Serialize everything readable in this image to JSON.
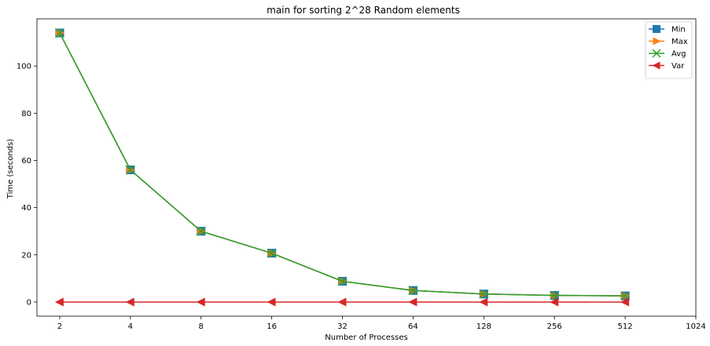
{
  "chart_data": {
    "type": "line",
    "title": "main for sorting 2^28 Random elements",
    "xlabel": "Number of Processes",
    "ylabel": "Time (seconds)",
    "x_scale": "log2",
    "x": [
      2,
      4,
      8,
      16,
      32,
      64,
      128,
      256,
      512
    ],
    "xticks": [
      "2",
      "4",
      "8",
      "16",
      "32",
      "64",
      "128",
      "256",
      "512",
      "1024"
    ],
    "yticks": [
      "0",
      "20",
      "40",
      "60",
      "80",
      "100"
    ],
    "xlim": [
      1.6,
      1024
    ],
    "ylim": [
      -6,
      120
    ],
    "grid": false,
    "legend_position": "top-right",
    "series": [
      {
        "name": "Min",
        "values": [
          114.0,
          56.0,
          30.0,
          20.7,
          8.8,
          4.9,
          3.4,
          2.8,
          2.6
        ],
        "color": "#1f77b4",
        "marker": "square"
      },
      {
        "name": "Max",
        "values": [
          114.0,
          56.0,
          30.0,
          20.7,
          8.8,
          4.9,
          3.4,
          2.8,
          2.6
        ],
        "color": "#ff7f0e",
        "marker": "triangle-right"
      },
      {
        "name": "Avg",
        "values": [
          114.0,
          56.0,
          30.0,
          20.7,
          8.8,
          4.9,
          3.4,
          2.8,
          2.6
        ],
        "color": "#2ca02c",
        "marker": "x"
      },
      {
        "name": "Var",
        "values": [
          0.0,
          0.0,
          0.0,
          0.0,
          0.0,
          0.0,
          0.0,
          0.0,
          0.0
        ],
        "color": "#d62728",
        "marker": "triangle-left"
      }
    ]
  }
}
